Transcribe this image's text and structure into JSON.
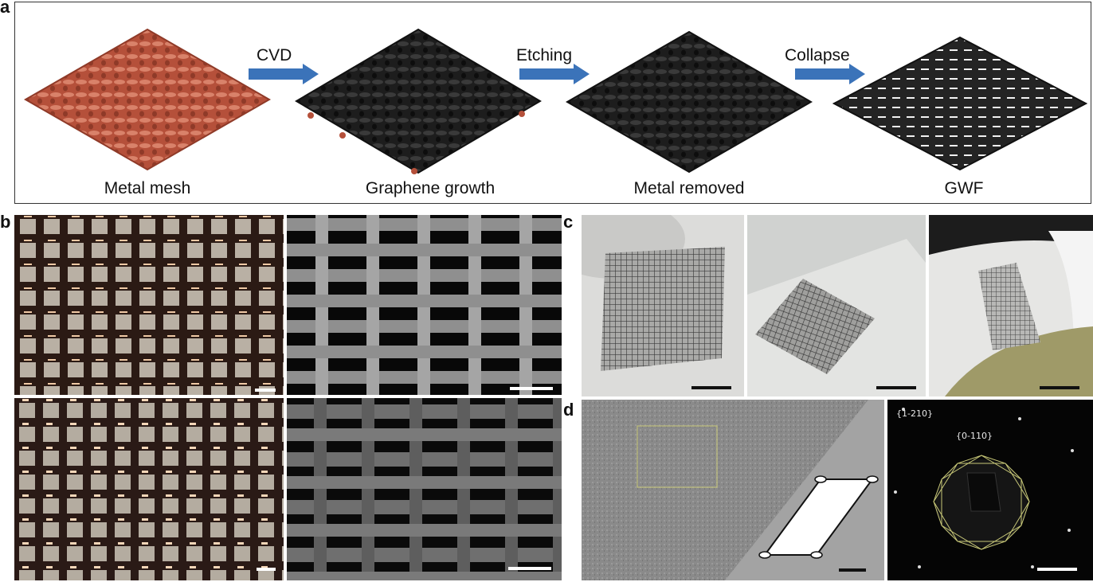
{
  "panels": {
    "a": {
      "letter": "a",
      "steps": [
        {
          "caption": "Metal mesh",
          "color": "#c4634a"
        },
        {
          "caption": "Graphene growth",
          "color": "#222222"
        },
        {
          "caption": "Metal removed",
          "color": "#222222"
        },
        {
          "caption": "GWF",
          "color": "#222222"
        }
      ],
      "arrows": [
        {
          "label": "CVD"
        },
        {
          "label": "Etching"
        },
        {
          "label": "Collapse"
        }
      ],
      "arrow_color": "#3b73b9"
    },
    "b": {
      "letter": "b"
    },
    "c": {
      "letter": "c"
    },
    "d": {
      "letter": "d",
      "saed_labels": [
        "{1-210}",
        "{0-110}"
      ],
      "box_color": "#c8c878"
    }
  }
}
